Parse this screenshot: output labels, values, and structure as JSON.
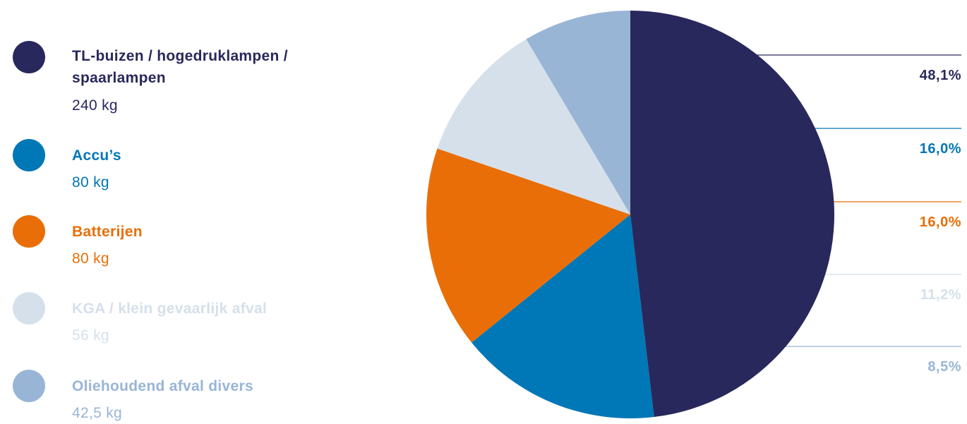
{
  "chart_data": {
    "type": "pie",
    "unit": "kg",
    "categories": [
      "TL-buizen / hogedruklampen / spaarlampen",
      "Accu’s",
      "Batterijen",
      "KGA / klein gevaarlijk afval",
      "Oliehoudend afval divers"
    ],
    "values": [
      240,
      80,
      80,
      56,
      42.5
    ],
    "value_labels": [
      "240 kg",
      "80 kg",
      "80 kg",
      "56 kg",
      "42,5 kg"
    ],
    "percent_labels": [
      "48,1%",
      "16,0%",
      "16,0%",
      "11,2%",
      "8,5%"
    ],
    "colors": [
      "#29285c",
      "#0077b6",
      "#e96e07",
      "#d5e0eb",
      "#99b5d6"
    ],
    "legend_position": "left",
    "direction": "clockwise from top"
  }
}
